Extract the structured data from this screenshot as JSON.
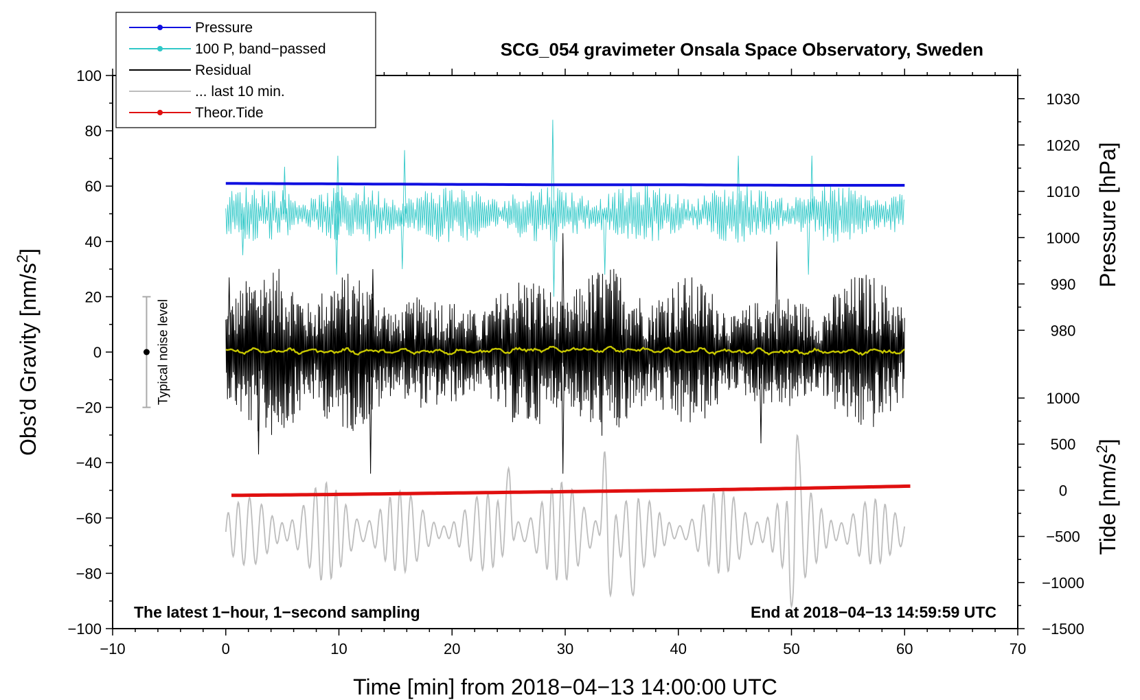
{
  "chart_data": {
    "type": "line",
    "title": "SCG_054 gravimeter Onsala Space Observatory, Sweden",
    "xlabel": "Time [min] from 2018−04−13 14:00:00 UTC",
    "ylabel": "Obs’d Gravity [nm/s",
    "ylabel_sup": "2",
    "ylabel_close": "]",
    "right_upper_label": "Pressure [hPa]",
    "right_lower_label": "Tide [nm/s",
    "right_lower_sup": "2",
    "right_lower_close": "]",
    "xlim": [
      -10,
      70
    ],
    "ylim": [
      -100,
      100
    ],
    "pressure_axis_range": [
      975,
      1035
    ],
    "tide_axis_range": [
      -1500,
      1000
    ],
    "xticks": [
      -10,
      0,
      10,
      20,
      30,
      40,
      50,
      60,
      70
    ],
    "xtick_labels": [
      "−10",
      "0",
      "10",
      "20",
      "30",
      "40",
      "50",
      "60",
      "70"
    ],
    "yticks": [
      -100,
      -80,
      -60,
      -40,
      -20,
      0,
      20,
      40,
      60,
      80,
      100
    ],
    "ytick_labels": [
      "−100",
      "−80",
      "−60",
      "−40",
      "−20",
      "0",
      "20",
      "40",
      "60",
      "80",
      "100"
    ],
    "pressure_ticks": [
      980,
      990,
      1000,
      1010,
      1020,
      1030
    ],
    "pressure_tick_labels": [
      "980",
      "990",
      "1000",
      "1010",
      "1020",
      "1030"
    ],
    "tide_ticks": [
      -1500,
      -1000,
      -500,
      0,
      500,
      1000
    ],
    "tide_tick_labels": [
      "−1500",
      "−1000",
      "−500",
      "0",
      "500",
      "1000"
    ],
    "legend": [
      {
        "label": "Pressure",
        "color": "#1010e0",
        "marker": true
      },
      {
        "label": "100 P, band−passed",
        "color": "#30c8c8",
        "marker": true
      },
      {
        "label": "Residual",
        "color": "#000000",
        "marker": false
      },
      {
        "label": "... last 10 min.",
        "color": "#bdbdbd",
        "marker": false
      },
      {
        "label": "Theor.Tide",
        "color": "#e01010",
        "marker": true
      }
    ],
    "legend_position": "top-left",
    "series": [
      {
        "name": "Pressure",
        "axis": "pressure",
        "color": "#1010e0",
        "x": [
          0,
          10,
          20,
          30,
          40,
          50,
          60
        ],
        "values": [
          1011.7,
          1011.6,
          1011.5,
          1011.4,
          1011.4,
          1011.3,
          1011.3
        ]
      },
      {
        "name": "100 P, band−passed",
        "axis": "gravity",
        "color": "#30c8c8",
        "center": 50,
        "typical_amplitude": 8,
        "peaks": [
          [
            5.2,
            67
          ],
          [
            9.9,
            71
          ],
          [
            15.8,
            73
          ],
          [
            28.9,
            84
          ],
          [
            45.3,
            71
          ],
          [
            51.8,
            71
          ]
        ],
        "troughs": [
          [
            1.5,
            35
          ],
          [
            9.8,
            28
          ],
          [
            15.6,
            30
          ],
          [
            29.0,
            20
          ],
          [
            33.5,
            28
          ],
          [
            51.5,
            28
          ]
        ]
      },
      {
        "name": "Residual",
        "axis": "gravity",
        "color": "#000000",
        "center": 0,
        "typical_amplitude": 20,
        "peaks": [
          [
            0.3,
            27
          ],
          [
            13.0,
            30
          ],
          [
            29.8,
            43
          ],
          [
            48.7,
            40
          ]
        ],
        "troughs": [
          [
            2.9,
            -37
          ],
          [
            12.8,
            -44
          ],
          [
            29.8,
            -44
          ],
          [
            47.3,
            -33
          ]
        ]
      },
      {
        "name": "Residual (smoothed)",
        "axis": "gravity",
        "color": "#c8c800",
        "x": [
          0,
          10,
          20,
          30,
          40,
          50,
          60
        ],
        "values": [
          0.5,
          0.3,
          0.2,
          1.0,
          0.5,
          0.0,
          0.3
        ]
      },
      {
        "name": "... last 10 min.",
        "axis": "gravity",
        "color": "#bdbdbd",
        "center": -65,
        "typical_amplitude": 10,
        "peaks": [
          [
            25.0,
            -42
          ],
          [
            33.5,
            -35
          ],
          [
            50.5,
            -29
          ]
        ],
        "troughs": [
          [
            34.0,
            -88
          ],
          [
            36.0,
            -88
          ],
          [
            50.0,
            -92
          ]
        ]
      },
      {
        "name": "Theor.Tide",
        "axis": "tide",
        "color": "#e01010",
        "x": [
          0.5,
          10,
          20,
          30,
          40,
          50,
          60.5
        ],
        "values": [
          -55,
          -45,
          -30,
          -15,
          0,
          20,
          45
        ]
      }
    ],
    "noise_bar": {
      "x": -7,
      "center": 0,
      "low": -20,
      "high": 20,
      "label": "Typical noise level"
    },
    "annotations": {
      "bottom_left": "The latest 1−hour, 1−second sampling",
      "bottom_right": "End at 2018−04−13 14:59:59 UTC"
    }
  }
}
